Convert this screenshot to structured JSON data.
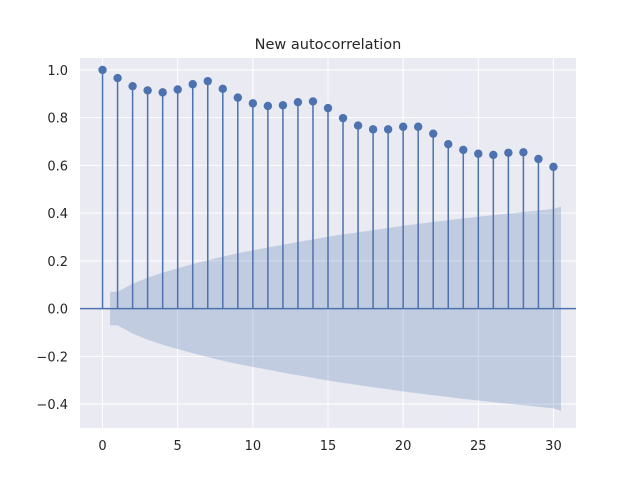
{
  "chart_data": {
    "type": "stem",
    "title": "New autocorrelation",
    "xlabel": "",
    "ylabel": "",
    "xlim": [
      -1.5,
      31.5
    ],
    "ylim": [
      -0.5,
      1.05
    ],
    "xticks": [
      0,
      5,
      10,
      15,
      20,
      25,
      30
    ],
    "yticks": [
      -0.4,
      -0.2,
      0.0,
      0.2,
      0.4,
      0.6,
      0.8,
      1.0
    ],
    "ytick_labels": [
      "−0.4",
      "−0.2",
      "0.0",
      "0.2",
      "0.4",
      "0.6",
      "0.8",
      "1.0"
    ],
    "grid": true,
    "lags": [
      0,
      1,
      2,
      3,
      4,
      5,
      6,
      7,
      8,
      9,
      10,
      11,
      12,
      13,
      14,
      15,
      16,
      17,
      18,
      19,
      20,
      21,
      22,
      23,
      24,
      25,
      26,
      27,
      28,
      29,
      30
    ],
    "values": [
      1.0,
      0.966,
      0.932,
      0.914,
      0.906,
      0.918,
      0.94,
      0.953,
      0.921,
      0.884,
      0.86,
      0.849,
      0.852,
      0.865,
      0.868,
      0.84,
      0.798,
      0.767,
      0.751,
      0.751,
      0.762,
      0.762,
      0.733,
      0.689,
      0.665,
      0.649,
      0.644,
      0.653,
      0.655,
      0.627,
      0.594
    ],
    "confidence_band": {
      "x": [
        0.5,
        1,
        2,
        3,
        4,
        5,
        6,
        7,
        8,
        9,
        10,
        11,
        12,
        13,
        14,
        15,
        16,
        17,
        18,
        19,
        20,
        21,
        22,
        23,
        24,
        25,
        26,
        27,
        28,
        29,
        30,
        30.5
      ],
      "upper": [
        0.07,
        0.07,
        0.104,
        0.13,
        0.151,
        0.169,
        0.187,
        0.203,
        0.218,
        0.232,
        0.244,
        0.256,
        0.268,
        0.279,
        0.29,
        0.301,
        0.311,
        0.32,
        0.329,
        0.338,
        0.347,
        0.355,
        0.363,
        0.37,
        0.378,
        0.385,
        0.392,
        0.398,
        0.405,
        0.411,
        0.418,
        0.428
      ]
    },
    "colors": {
      "background": "#eaeaf2",
      "grid": "#ffffff",
      "stem": "#4c72b0",
      "band": "#4c72b0"
    }
  }
}
